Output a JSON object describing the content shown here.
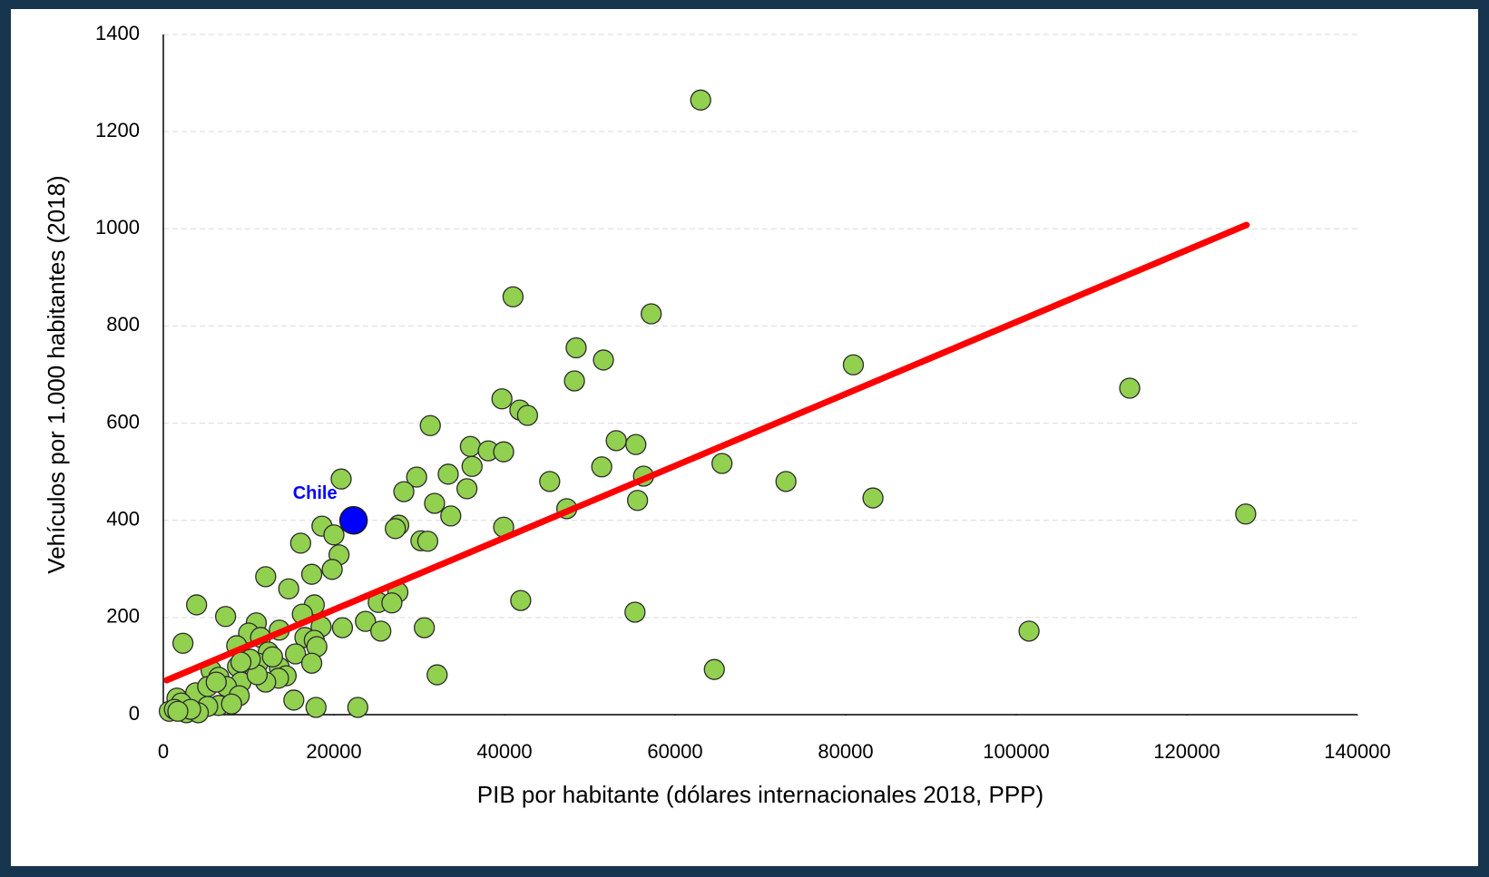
{
  "chart_data": {
    "type": "scatter",
    "xlabel": "PIB por habitante (dólares internacionales 2018, PPP)",
    "ylabel": "Vehículos por 1.000 habitantes  (2018)",
    "xlim": [
      0,
      140000
    ],
    "ylim": [
      0,
      1400
    ],
    "xticks": [
      0,
      20000,
      40000,
      60000,
      80000,
      100000,
      120000,
      140000
    ],
    "yticks": [
      0,
      200,
      400,
      600,
      800,
      1000,
      1200,
      1400
    ],
    "grid": true,
    "color": "#92d050",
    "x": [
      63000,
      41000,
      57200,
      48400,
      51600,
      48200,
      80900,
      113300,
      39700,
      41800,
      42700,
      31300,
      53100,
      55400,
      36000,
      38100,
      39900,
      20850,
      29700,
      33400,
      36200,
      51400,
      65500,
      45300,
      73000,
      56300,
      28200,
      35600,
      83200,
      55600,
      31800,
      47300,
      33700,
      126900,
      18600,
      39900,
      27600,
      27200,
      20000,
      30200,
      31000,
      16100,
      20600,
      19800,
      17400,
      12000,
      14700,
      27500,
      41900,
      25200,
      26800,
      3900,
      17700,
      16300,
      7300,
      23700,
      10900,
      55300,
      18500,
      30600,
      21000,
      25500,
      101500,
      13600,
      10000,
      11400,
      16600,
      2300,
      17700,
      18000,
      8600,
      12300,
      15500,
      17400,
      11100,
      8700,
      13600,
      14400,
      32100,
      64600,
      5600,
      13500,
      6500,
      12000,
      9100,
      7400,
      8900,
      15300,
      17900,
      22800,
      3800,
      6500,
      8000,
      5200,
      1600,
      2100,
      700,
      1300,
      2700,
      4100,
      3200,
      1700,
      5200,
      6200,
      11000,
      10200,
      12800,
      9100
    ],
    "values": [
      1265,
      860,
      825,
      755,
      730,
      687,
      720,
      672,
      650,
      627,
      616,
      595,
      564,
      556,
      552,
      543,
      541,
      485,
      489,
      495,
      511,
      510,
      517,
      480,
      480,
      491,
      459,
      465,
      446,
      441,
      435,
      424,
      409,
      413,
      388,
      386,
      390,
      383,
      370,
      358,
      357,
      353,
      329,
      299,
      289,
      284,
      259,
      252,
      235,
      231,
      230,
      226,
      226,
      207,
      202,
      192,
      189,
      211,
      181,
      179,
      179,
      172,
      172,
      174,
      168,
      159,
      159,
      147,
      153,
      140,
      142,
      129,
      125,
      106,
      106,
      99,
      97,
      80,
      82,
      93,
      91,
      75,
      77,
      67,
      67,
      58,
      39,
      30,
      15,
      15,
      45,
      19,
      22,
      17,
      34,
      24,
      7,
      11,
      4,
      4,
      11,
      7,
      58,
      67,
      82,
      114,
      119,
      108
    ],
    "trendline": {
      "color": "#ff0000",
      "x": [
        400,
        127000
      ],
      "y": [
        71,
        1008
      ]
    },
    "annotations": [
      {
        "text": "Chile",
        "x": 22300,
        "y": 400,
        "color": "#0000ff"
      }
    ]
  }
}
